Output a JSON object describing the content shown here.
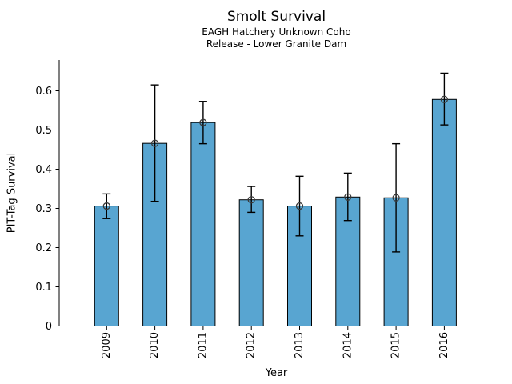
{
  "chart_data": {
    "type": "bar",
    "title": "Smolt Survival",
    "subtitle1": "EAGH Hatchery Unknown Coho",
    "subtitle2": "Release - Lower Granite Dam",
    "xlabel": "Year",
    "ylabel": "PIT-Tag Survival",
    "categories": [
      "2009",
      "2010",
      "2011",
      "2012",
      "2013",
      "2014",
      "2015",
      "2016"
    ],
    "values": [
      0.306,
      0.466,
      0.519,
      0.322,
      0.306,
      0.329,
      0.327,
      0.578
    ],
    "error_low": [
      0.274,
      0.318,
      0.465,
      0.29,
      0.23,
      0.269,
      0.189,
      0.513
    ],
    "error_high": [
      0.337,
      0.615,
      0.573,
      0.356,
      0.382,
      0.39,
      0.465,
      0.645
    ],
    "ytick_labels": [
      "0",
      "0.1",
      "0.2",
      "0.3",
      "0.4",
      "0.5",
      "0.6"
    ],
    "ytick_values": [
      0,
      0.1,
      0.2,
      0.3,
      0.4,
      0.5,
      0.6
    ],
    "ylim": [
      0,
      0.68
    ],
    "grid": false,
    "legend": "none",
    "xtick_rotation_deg": 90,
    "bar_color": "#58A5D1",
    "bar_edge_color": "#000000",
    "error_color": "#000000",
    "marker": "open-circle",
    "marker_color": "#3a3a3a"
  }
}
